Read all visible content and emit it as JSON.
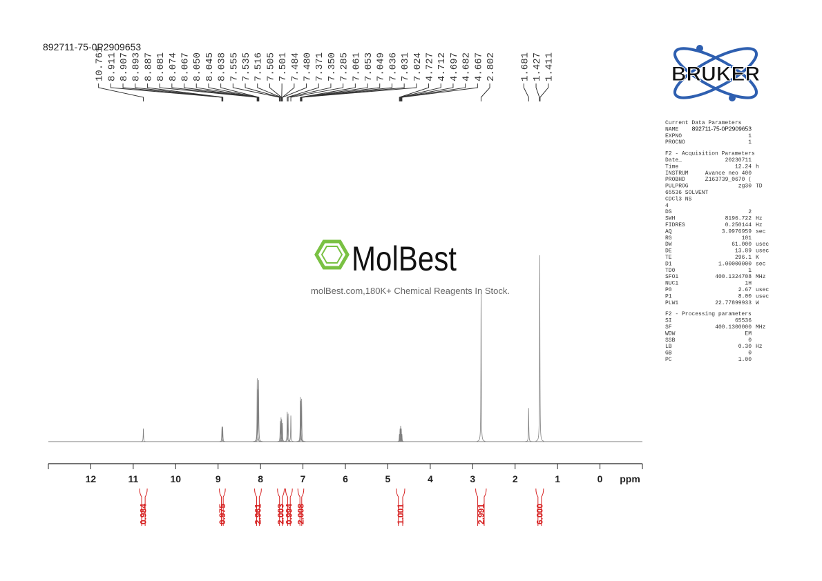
{
  "chart_data": {
    "type": "nmr",
    "title": "892711-75-0P2909653",
    "x_label": "ppm",
    "xlim": [
      13,
      -1
    ],
    "xticks": [
      12,
      11,
      10,
      9,
      8,
      7,
      6,
      5,
      4,
      3,
      2,
      1,
      0
    ],
    "color": "#7f7f7f",
    "peak_labels": [
      {
        "value": 10.761,
        "label": "10.761"
      },
      {
        "value": 8.911,
        "label": "8.911"
      },
      {
        "value": 8.907,
        "label": "8.907"
      },
      {
        "value": 8.893,
        "label": "8.893"
      },
      {
        "value": 8.887,
        "label": "8.887"
      },
      {
        "value": 8.081,
        "label": "8.081"
      },
      {
        "value": 8.074,
        "label": "8.074"
      },
      {
        "value": 8.067,
        "label": "8.067"
      },
      {
        "value": 8.05,
        "label": "8.050"
      },
      {
        "value": 8.045,
        "label": "8.045"
      },
      {
        "value": 8.038,
        "label": "8.038"
      },
      {
        "value": 7.555,
        "label": "7.555"
      },
      {
        "value": 7.535,
        "label": "7.535"
      },
      {
        "value": 7.516,
        "label": "7.516"
      },
      {
        "value": 7.505,
        "label": "7.505"
      },
      {
        "value": 7.501,
        "label": "7.501"
      },
      {
        "value": 7.484,
        "label": "7.484"
      },
      {
        "value": 7.48,
        "label": "7.480"
      },
      {
        "value": 7.371,
        "label": "7.371"
      },
      {
        "value": 7.35,
        "label": "7.350"
      },
      {
        "value": 7.285,
        "label": "7.285"
      },
      {
        "value": 7.061,
        "label": "7.061"
      },
      {
        "value": 7.053,
        "label": "7.053"
      },
      {
        "value": 7.049,
        "label": "7.049"
      },
      {
        "value": 7.036,
        "label": "7.036"
      },
      {
        "value": 7.031,
        "label": "7.031"
      },
      {
        "value": 7.024,
        "label": "7.024"
      },
      {
        "value": 4.727,
        "label": "4.727"
      },
      {
        "value": 4.712,
        "label": "4.712"
      },
      {
        "value": 4.697,
        "label": "4.697"
      },
      {
        "value": 4.682,
        "label": "4.682"
      },
      {
        "value": 4.667,
        "label": "4.667"
      },
      {
        "value": 2.802,
        "label": "2.802"
      },
      {
        "value": 1.681,
        "label": "1.681"
      },
      {
        "value": 1.427,
        "label": "1.427"
      },
      {
        "value": 1.411,
        "label": "1.411"
      }
    ],
    "signals": {
      "ppm": [
        10.761,
        8.909,
        8.89,
        8.078,
        8.07,
        8.045,
        7.535,
        7.516,
        7.501,
        7.484,
        7.371,
        7.35,
        7.285,
        7.061,
        7.049,
        7.031,
        4.727,
        4.712,
        4.697,
        4.682,
        4.667,
        2.802,
        1.681,
        1.419
      ],
      "intensity": [
        7,
        8,
        8,
        34,
        28,
        33,
        11,
        13,
        12,
        10,
        16,
        15,
        14,
        24,
        22,
        23,
        4,
        7,
        8.5,
        7,
        4,
        80,
        18,
        100
      ]
    },
    "integrals": [
      {
        "from": 10.85,
        "to": 10.67,
        "value": 0.984,
        "label": "0.984"
      },
      {
        "from": 8.97,
        "to": 8.83,
        "value": 0.975,
        "label": "0.975"
      },
      {
        "from": 8.14,
        "to": 7.98,
        "value": 2.961,
        "label": "2.961"
      },
      {
        "from": 7.6,
        "to": 7.44,
        "value": 2.003,
        "label": "2.003"
      },
      {
        "from": 7.41,
        "to": 7.25,
        "value": 0.994,
        "label": "0.994"
      },
      {
        "from": 7.12,
        "to": 6.98,
        "value": 2.008,
        "label": "2.008"
      },
      {
        "from": 4.8,
        "to": 4.6,
        "value": 1.001,
        "label": "1.001"
      },
      {
        "from": 2.93,
        "to": 2.68,
        "value": 2.991,
        "label": "2.991"
      },
      {
        "from": 1.51,
        "to": 1.33,
        "value": 6,
        "label": "6.000"
      }
    ],
    "integral_color": "#d62020"
  },
  "logo": "BRUKER",
  "watermark": {
    "brand": "MolBest",
    "tagline": "molBest.com,180K+ Chemical Reagents In Stock."
  },
  "parameters": [
    {
      "heading": "Current Data Parameters",
      "rows": [
        [
          "NAME",
          "892711-75-0P2909653"
        ],
        [
          "EXPNO",
          "1"
        ],
        [
          "PROCNO",
          "1"
        ]
      ]
    },
    {
      "heading": "F2 - Acquisition Parameters",
      "rows": [
        [
          "Date_",
          "20230711"
        ],
        [
          "Time",
          "12.24",
          "h"
        ],
        [
          "INSTRUM",
          "Avance neo 400"
        ],
        [
          "PROBHD",
          "Z163739_0670 ("
        ],
        [
          "PULPROG",
          "zg30",
          "TD"
        ],
        [
          "65536 SOLVENT"
        ],
        [
          "CDCl3 NS"
        ],
        [
          "4"
        ],
        [
          "DS",
          "2"
        ],
        [
          "SWH",
          "8196.722",
          "Hz"
        ],
        [
          "FIDRES",
          "0.250144",
          "Hz"
        ],
        [
          "AQ",
          "3.9976959",
          "sec"
        ],
        [
          "RG",
          "101"
        ],
        [
          "DW",
          "61.000",
          "usec"
        ],
        [
          "DE",
          "13.89",
          "usec"
        ],
        [
          "TE",
          "296.1",
          "K"
        ],
        [
          "D1",
          "1.00000000",
          "sec"
        ],
        [
          "TD0",
          "1"
        ],
        [
          "SFO1",
          "400.1324708",
          "MHz"
        ],
        [
          "NUC1",
          "1H"
        ],
        [
          "P0",
          "2.67",
          "usec"
        ],
        [
          "P1",
          "8.00",
          "usec"
        ],
        [
          "PLW1",
          "22.77899933",
          "W"
        ]
      ]
    },
    {
      "heading": "F2 - Processing parameters",
      "rows": [
        [
          "SI",
          "65536"
        ],
        [
          "SF",
          "400.1300000",
          "MHz"
        ],
        [
          "WDW",
          "EM"
        ],
        [
          "SSB",
          "0"
        ],
        [
          "LB",
          "0.30",
          "Hz"
        ],
        [
          "GB",
          "0"
        ],
        [
          "PC",
          "1.00"
        ]
      ]
    }
  ]
}
